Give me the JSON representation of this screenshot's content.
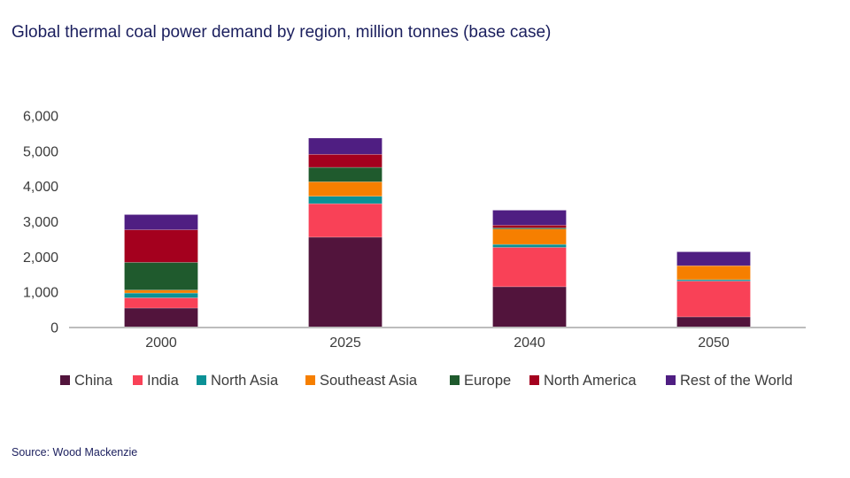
{
  "title": "Global thermal coal power demand by region, million tonnes (base case)",
  "source": "Source: Wood Mackenzie",
  "chart_data": {
    "type": "bar",
    "stacked": true,
    "title": "Global thermal coal power demand by region, million tonnes (base case)",
    "xlabel": "",
    "ylabel": "",
    "ylim": [
      0,
      6000
    ],
    "yticks": [
      0,
      1000,
      2000,
      3000,
      4000,
      5000,
      6000
    ],
    "ytick_labels": [
      "0",
      "1,000",
      "2,000",
      "3,000",
      "4,000",
      "5,000",
      "6,000"
    ],
    "categories": [
      "2000",
      "2025",
      "2040",
      "2050"
    ],
    "legend_position": "bottom",
    "grid": false,
    "series": [
      {
        "name": "China",
        "color": "#52143c",
        "values": [
          540,
          2550,
          1145,
          290
        ]
      },
      {
        "name": "India",
        "color": "#f94157",
        "values": [
          290,
          950,
          1115,
          1015
        ]
      },
      {
        "name": "North Asia",
        "color": "#0b9196",
        "values": [
          135,
          210,
          85,
          40
        ]
      },
      {
        "name": "Southeast Asia",
        "color": "#f67f00",
        "values": [
          85,
          410,
          435,
          395
        ]
      },
      {
        "name": "Europe",
        "color": "#1f5a2d",
        "values": [
          785,
          410,
          35,
          0
        ]
      },
      {
        "name": "North America",
        "color": "#a4001e",
        "values": [
          925,
          370,
          75,
          0
        ]
      },
      {
        "name": "Rest of the World",
        "color": "#4f1e82",
        "values": [
          430,
          460,
          425,
          395
        ]
      }
    ]
  }
}
